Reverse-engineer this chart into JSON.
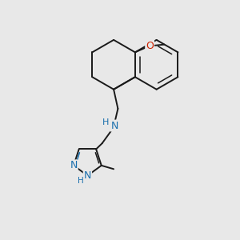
{
  "bg": "#e8e8e8",
  "bc": "#1a1a1a",
  "nc": "#1a6fad",
  "oc": "#cc2200",
  "lw": 1.4,
  "lw2": 1.1,
  "figsize": [
    3.0,
    3.0
  ],
  "dpi": 100,
  "xlim": [
    0.0,
    10.0
  ],
  "ylim": [
    0.0,
    10.0
  ]
}
